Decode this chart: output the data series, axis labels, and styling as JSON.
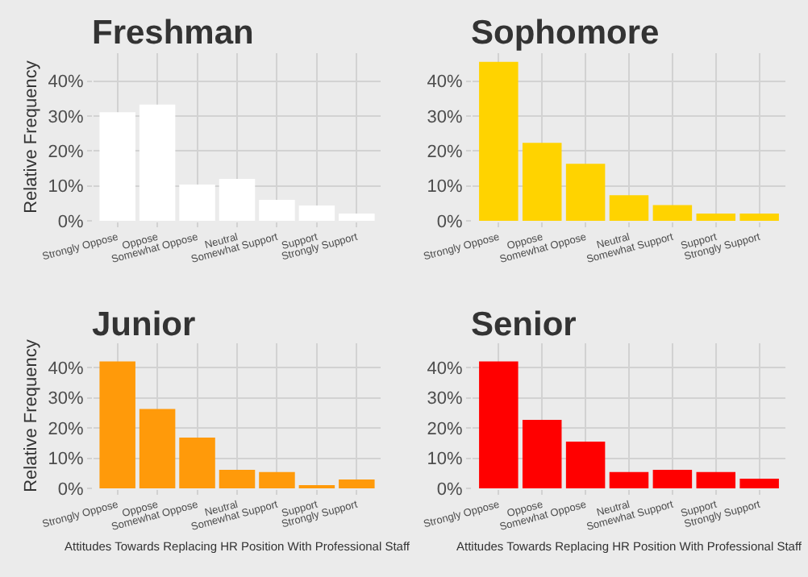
{
  "chart_data": [
    {
      "type": "bar",
      "title": "Freshman",
      "ylabel": "Relative Frequency",
      "categories": [
        "Strongly Oppose",
        "Oppose",
        "Somewhat Oppose",
        "Neutral",
        "Somewhat Support",
        "Support",
        "Strongly Support"
      ],
      "values": [
        31.1,
        33.3,
        10.4,
        12.0,
        6.0,
        4.4,
        2.1
      ],
      "color": "#ffffff",
      "ylim": [
        0,
        48
      ],
      "yticks": [
        {
          "value": 0,
          "label": "0%"
        },
        {
          "value": 10,
          "label": "10%"
        },
        {
          "value": 20,
          "label": "20%"
        },
        {
          "value": 30,
          "label": "30%"
        },
        {
          "value": 40,
          "label": "40%"
        }
      ],
      "grid": true
    },
    {
      "type": "bar",
      "title": "Sophomore",
      "categories": [
        "Strongly Oppose",
        "Oppose",
        "Somewhat Oppose",
        "Neutral",
        "Somewhat Support",
        "Support",
        "Strongly Support"
      ],
      "values": [
        45.5,
        22.3,
        16.3,
        7.3,
        4.5,
        2.1,
        2.1
      ],
      "color": "#ffd300",
      "ylim": [
        0,
        48
      ],
      "yticks": [
        {
          "value": 0,
          "label": "0%"
        },
        {
          "value": 10,
          "label": "10%"
        },
        {
          "value": 20,
          "label": "20%"
        },
        {
          "value": 30,
          "label": "30%"
        },
        {
          "value": 40,
          "label": "40%"
        }
      ],
      "grid": true
    },
    {
      "type": "bar",
      "title": "Junior",
      "ylabel": "Relative Frequency",
      "xlabel": "Attitudes Towards Replacing HR Position With Professional Staff",
      "categories": [
        "Strongly Oppose",
        "Oppose",
        "Somewhat Oppose",
        "Neutral",
        "Somewhat Support",
        "Support",
        "Strongly Support"
      ],
      "values": [
        42.0,
        26.3,
        16.8,
        6.1,
        5.4,
        0.9,
        2.9
      ],
      "color": "#ff9a0a",
      "ylim": [
        0,
        48
      ],
      "yticks": [
        {
          "value": 0,
          "label": "0%"
        },
        {
          "value": 10,
          "label": "10%"
        },
        {
          "value": 20,
          "label": "20%"
        },
        {
          "value": 30,
          "label": "30%"
        },
        {
          "value": 40,
          "label": "40%"
        }
      ],
      "grid": true
    },
    {
      "type": "bar",
      "title": "Senior",
      "xlabel": "Attitudes Towards Replacing HR Position With Professional Staff",
      "categories": [
        "Strongly Oppose",
        "Oppose",
        "Somewhat Oppose",
        "Neutral",
        "Somewhat Support",
        "Support",
        "Strongly Support"
      ],
      "values": [
        42.0,
        22.7,
        15.5,
        5.4,
        6.1,
        5.4,
        3.2
      ],
      "color": "#ff0000",
      "ylim": [
        0,
        48
      ],
      "yticks": [
        {
          "value": 0,
          "label": "0%"
        },
        {
          "value": 10,
          "label": "10%"
        },
        {
          "value": 20,
          "label": "20%"
        },
        {
          "value": 30,
          "label": "30%"
        },
        {
          "value": 40,
          "label": "40%"
        }
      ],
      "grid": true
    }
  ]
}
